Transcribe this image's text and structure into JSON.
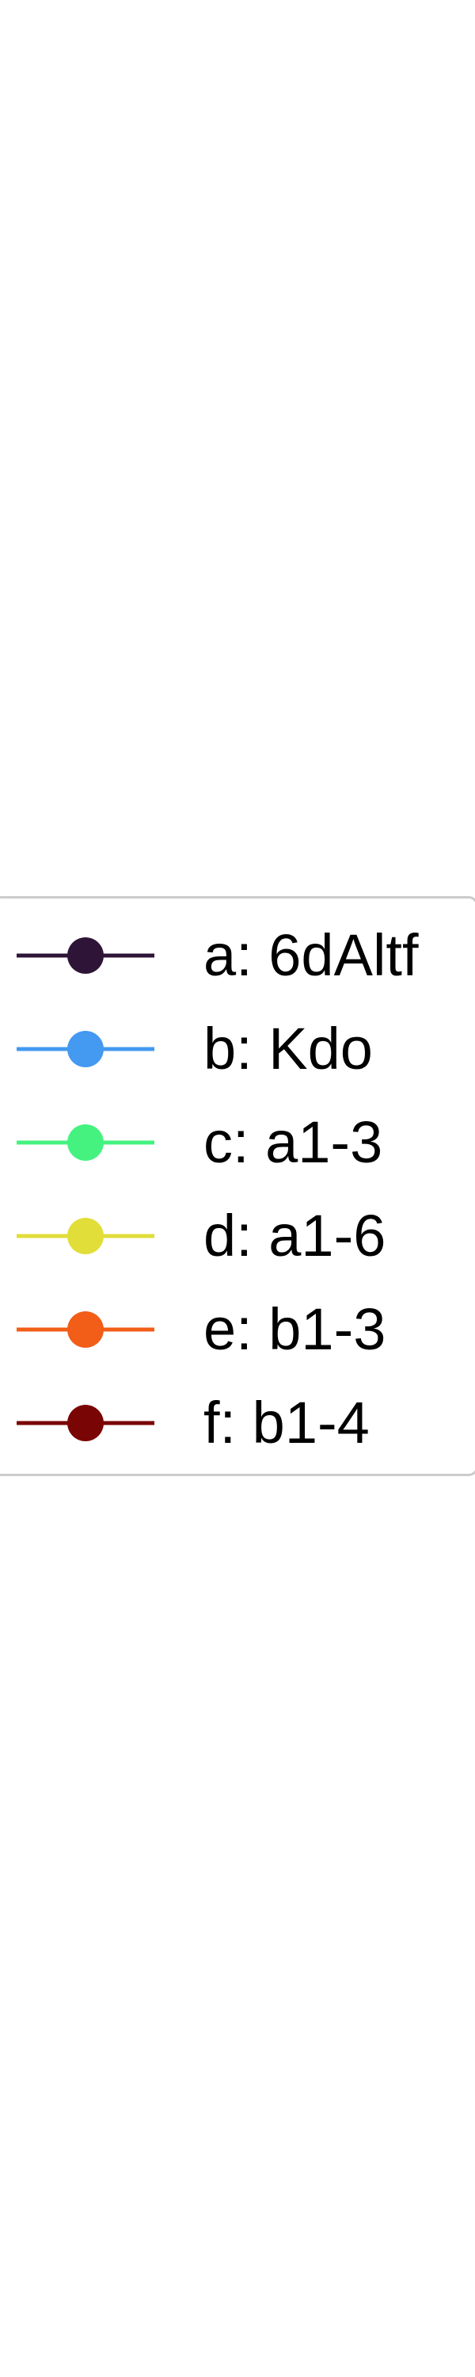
{
  "chart_data": {
    "type": "legend",
    "legend": {
      "entries": [
        {
          "label": "a: 6dAltf",
          "color": "#2e1437"
        },
        {
          "label": "b: Kdo",
          "color": "#4499f0"
        },
        {
          "label": "c: a1-3",
          "color": "#45f280"
        },
        {
          "label": "d: a1-6",
          "color": "#e1de3a"
        },
        {
          "label": "e: b1-3",
          "color": "#f25d18"
        },
        {
          "label": "f: b1-4",
          "color": "#7a0505"
        }
      ]
    }
  }
}
